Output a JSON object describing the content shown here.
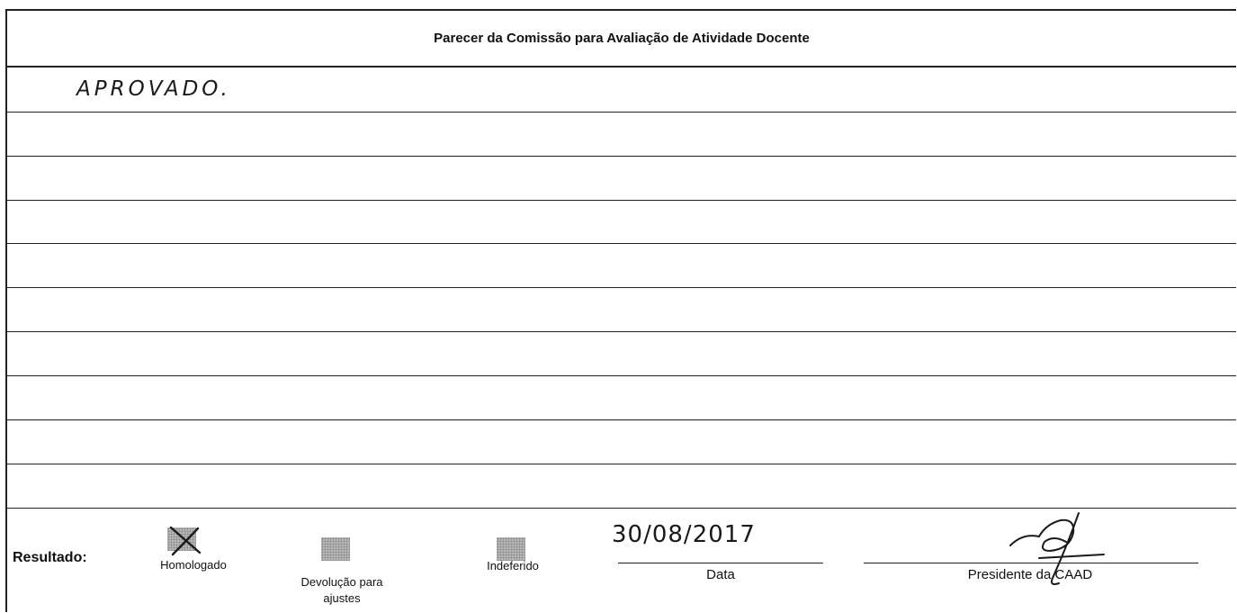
{
  "header": {
    "title": "Parecer da Comissão para Avaliação de Atividade Docente"
  },
  "opinion": {
    "text": "APROVADO."
  },
  "result": {
    "label": "Resultado:",
    "options": [
      {
        "label": "Homologado",
        "checked": true
      },
      {
        "label": "Devolução para ajustes",
        "checked": false
      },
      {
        "label": "Indeferido",
        "checked": false
      }
    ]
  },
  "date": {
    "value": "30/08/2017",
    "label": "Data"
  },
  "signature": {
    "label": "Presidente da CAAD"
  }
}
